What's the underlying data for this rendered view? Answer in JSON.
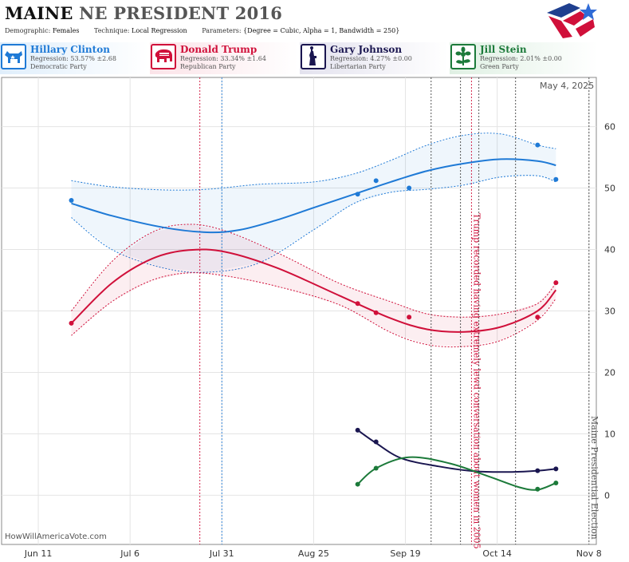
{
  "header": {
    "state": "MAINE",
    "race": "NE PRESIDENT 2016",
    "demographic_label": "Demographic:",
    "demographic": "Females",
    "technique_label": "Technique:",
    "technique": "Local Regression",
    "parameters_label": "Parameters:",
    "parameters": "{Degree = Cubic, Alpha = 1, Bandwidth = 250}"
  },
  "candidates": [
    {
      "name": "Hillary Clinton",
      "regression": "Regression: 53.57% ±2.68",
      "party": "Democratic Party",
      "color": "#1f7ad6",
      "icon": "donkey-icon"
    },
    {
      "name": "Donald Trump",
      "regression": "Regression: 33.34% ±1.64",
      "party": "Republican Party",
      "color": "#d0103a",
      "icon": "elephant-icon"
    },
    {
      "name": "Gary Johnson",
      "regression": "Regression: 4.27% ±0.00",
      "party": "Libertarian Party",
      "color": "#1a1650",
      "icon": "liberty-torch-icon"
    },
    {
      "name": "Jill Stein",
      "regression": "Regression: 2.01% ±0.00",
      "party": "Green Party",
      "color": "#1c7a3a",
      "icon": "leaf-flower-icon"
    }
  ],
  "date_stamp": "May 4, 2025",
  "watermark": "HowWillAmericaVote.com",
  "chart_data": {
    "type": "line",
    "x_tick_labels": [
      "Jun 11",
      "Jul 6",
      "Jul 31",
      "Aug 25",
      "Sep 19",
      "Oct 14",
      "Nov 8"
    ],
    "xlim": [
      "2016-06-01",
      "2016-11-10"
    ],
    "ylim": [
      -8,
      68
    ],
    "y_ticks": [
      0,
      10,
      20,
      30,
      40,
      50,
      60
    ],
    "grid": true,
    "series": [
      {
        "name": "Hillary Clinton",
        "color": "#1f7ad6",
        "points": [
          [
            "2016-06-20",
            48
          ],
          [
            "2016-09-06",
            49
          ],
          [
            "2016-09-11",
            51.2
          ],
          [
            "2016-09-20",
            50
          ],
          [
            "2016-10-25",
            57
          ],
          [
            "2016-10-30",
            51.4
          ]
        ],
        "trend": [
          [
            "2016-06-20",
            47.5
          ],
          [
            "2016-07-01",
            45.5
          ],
          [
            "2016-07-15",
            43.6
          ],
          [
            "2016-07-27",
            42.8
          ],
          [
            "2016-08-05",
            43.2
          ],
          [
            "2016-08-15",
            44.8
          ],
          [
            "2016-08-25",
            46.8
          ],
          [
            "2016-09-05",
            49
          ],
          [
            "2016-09-15",
            51
          ],
          [
            "2016-09-25",
            52.8
          ],
          [
            "2016-10-05",
            54
          ],
          [
            "2016-10-15",
            54.7
          ],
          [
            "2016-10-25",
            54.4
          ],
          [
            "2016-10-30",
            53.7
          ]
        ],
        "upper": [
          [
            "2016-06-20",
            51.2
          ],
          [
            "2016-07-01",
            50.2
          ],
          [
            "2016-07-15",
            49.7
          ],
          [
            "2016-07-27",
            49.8
          ],
          [
            "2016-08-10",
            50.6
          ],
          [
            "2016-08-25",
            51
          ],
          [
            "2016-09-05",
            52.3
          ],
          [
            "2016-09-15",
            54.5
          ],
          [
            "2016-09-25",
            57
          ],
          [
            "2016-10-05",
            58.6
          ],
          [
            "2016-10-15",
            58.8
          ],
          [
            "2016-10-25",
            57
          ],
          [
            "2016-10-30",
            56.4
          ]
        ],
        "lower": [
          [
            "2016-06-20",
            45.2
          ],
          [
            "2016-07-01",
            40
          ],
          [
            "2016-07-15",
            37
          ],
          [
            "2016-07-27",
            36.3
          ],
          [
            "2016-08-10",
            37.8
          ],
          [
            "2016-08-25",
            43.2
          ],
          [
            "2016-09-05",
            47.5
          ],
          [
            "2016-09-15",
            49.3
          ],
          [
            "2016-09-25",
            49.8
          ],
          [
            "2016-10-05",
            50.5
          ],
          [
            "2016-10-15",
            51.8
          ],
          [
            "2016-10-25",
            52
          ],
          [
            "2016-10-30",
            51
          ]
        ]
      },
      {
        "name": "Donald Trump",
        "color": "#d0103a",
        "points": [
          [
            "2016-06-20",
            28
          ],
          [
            "2016-09-06",
            31.2
          ],
          [
            "2016-09-11",
            29.7
          ],
          [
            "2016-09-20",
            29
          ],
          [
            "2016-10-25",
            29
          ],
          [
            "2016-10-30",
            34.6
          ]
        ],
        "trend": [
          [
            "2016-06-20",
            28
          ],
          [
            "2016-07-01",
            34.5
          ],
          [
            "2016-07-12",
            38.5
          ],
          [
            "2016-07-22",
            39.9
          ],
          [
            "2016-08-01",
            39.6
          ],
          [
            "2016-08-15",
            37
          ],
          [
            "2016-09-01",
            32.5
          ],
          [
            "2016-09-15",
            28.8
          ],
          [
            "2016-09-25",
            27
          ],
          [
            "2016-10-05",
            26.6
          ],
          [
            "2016-10-15",
            27.4
          ],
          [
            "2016-10-25",
            30
          ],
          [
            "2016-10-30",
            33.4
          ]
        ],
        "upper": [
          [
            "2016-06-20",
            30
          ],
          [
            "2016-07-01",
            38
          ],
          [
            "2016-07-12",
            42.8
          ],
          [
            "2016-07-22",
            44.1
          ],
          [
            "2016-08-01",
            43
          ],
          [
            "2016-08-15",
            39.5
          ],
          [
            "2016-09-01",
            34.5
          ],
          [
            "2016-09-15",
            31.5
          ],
          [
            "2016-09-25",
            29.5
          ],
          [
            "2016-10-05",
            29
          ],
          [
            "2016-10-15",
            29.5
          ],
          [
            "2016-10-25",
            31.2
          ],
          [
            "2016-10-30",
            34.5
          ]
        ],
        "lower": [
          [
            "2016-06-20",
            26
          ],
          [
            "2016-07-01",
            31.5
          ],
          [
            "2016-07-12",
            35
          ],
          [
            "2016-07-22",
            36.2
          ],
          [
            "2016-08-01",
            35.7
          ],
          [
            "2016-08-15",
            34
          ],
          [
            "2016-09-01",
            31
          ],
          [
            "2016-09-15",
            26.5
          ],
          [
            "2016-09-25",
            24.5
          ],
          [
            "2016-10-05",
            24.2
          ],
          [
            "2016-10-15",
            25.2
          ],
          [
            "2016-10-25",
            28.5
          ],
          [
            "2016-10-30",
            32
          ]
        ]
      },
      {
        "name": "Gary Johnson",
        "color": "#1a1650",
        "points": [
          [
            "2016-09-06",
            10.6
          ],
          [
            "2016-09-11",
            8.7
          ],
          [
            "2016-10-25",
            4
          ],
          [
            "2016-10-30",
            4.3
          ]
        ],
        "trend": [
          [
            "2016-09-06",
            10.6
          ],
          [
            "2016-09-11",
            8.5
          ],
          [
            "2016-09-18",
            6
          ],
          [
            "2016-09-28",
            4.7
          ],
          [
            "2016-10-08",
            3.9
          ],
          [
            "2016-10-18",
            3.8
          ],
          [
            "2016-10-25",
            4
          ],
          [
            "2016-10-30",
            4.3
          ]
        ]
      },
      {
        "name": "Jill Stein",
        "color": "#1c7a3a",
        "points": [
          [
            "2016-09-06",
            1.8
          ],
          [
            "2016-09-11",
            4.4
          ],
          [
            "2016-10-25",
            1
          ],
          [
            "2016-10-30",
            2
          ]
        ],
        "trend": [
          [
            "2016-09-06",
            1.8
          ],
          [
            "2016-09-11",
            4.4
          ],
          [
            "2016-09-20",
            6.2
          ],
          [
            "2016-10-01",
            5.2
          ],
          [
            "2016-10-12",
            3
          ],
          [
            "2016-10-20",
            1.3
          ],
          [
            "2016-10-25",
            0.9
          ],
          [
            "2016-10-30",
            2
          ]
        ]
      }
    ],
    "events": [
      {
        "date": "2016-07-25",
        "color": "#d0103a",
        "label": ""
      },
      {
        "date": "2016-07-31",
        "color": "#1f7ad6",
        "label": ""
      },
      {
        "date": "2016-09-26",
        "color": "#444444",
        "label": ""
      },
      {
        "date": "2016-10-04",
        "color": "#444444",
        "label": ""
      },
      {
        "date": "2016-10-07",
        "color": "#d0103a",
        "label": "Trump recorded having extremely lewd conversation about women in 2005"
      },
      {
        "date": "2016-10-09",
        "color": "#444444",
        "label": ""
      },
      {
        "date": "2016-10-19",
        "color": "#444444",
        "label": ""
      },
      {
        "date": "2016-11-08",
        "color": "#444444",
        "label": "Maine Presidential Election"
      }
    ]
  }
}
